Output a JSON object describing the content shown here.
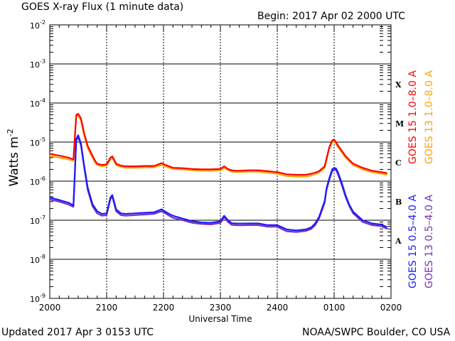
{
  "header": {
    "title": "GOES X-ray Flux (1 minute data)",
    "begin": "Begin: 2017 Apr 02 2000 UTC"
  },
  "footer": {
    "updated": "Updated 2017 Apr  3 0153 UTC",
    "credit": "NOAA/SWPC Boulder, CO USA"
  },
  "chart_data": {
    "type": "line",
    "title": "GOES X-ray Flux (1 minute data)",
    "xlabel": "Universal Time",
    "ylabel": "Watts m",
    "ylabel_sup": "-2",
    "yscale": "log",
    "ylim": [
      1e-09,
      0.01
    ],
    "xlim": [
      0,
      360
    ],
    "x_unit": "minutes since 2017-04-02 2000 UTC",
    "x_ticks": [
      {
        "label": "2000",
        "x": 0
      },
      {
        "label": "2100",
        "x": 60
      },
      {
        "label": "2200",
        "x": 120
      },
      {
        "label": "2300",
        "x": 180
      },
      {
        "label": "2400",
        "x": 240
      },
      {
        "label": "0100",
        "x": 300
      },
      {
        "label": "0200",
        "x": 360
      }
    ],
    "y_ticks": [
      {
        "exp": -2,
        "value": 0.01
      },
      {
        "exp": -3,
        "value": 0.001
      },
      {
        "exp": -4,
        "value": 0.0001
      },
      {
        "exp": -5,
        "value": 1e-05
      },
      {
        "exp": -6,
        "value": 1e-06
      },
      {
        "exp": -7,
        "value": 1e-07
      },
      {
        "exp": -8,
        "value": 1e-08
      },
      {
        "exp": -9,
        "value": 1e-09
      }
    ],
    "flare_classes": [
      {
        "label": "X",
        "value": 0.0003
      },
      {
        "label": "M",
        "value": 3e-05
      },
      {
        "label": "C",
        "value": 3e-06
      },
      {
        "label": "B",
        "value": 3e-07
      },
      {
        "label": "A",
        "value": 3e-08
      }
    ],
    "gridlines": [
      0.001,
      0.0001,
      1e-05,
      1e-06,
      1e-07,
      1e-08
    ],
    "series": [
      {
        "name": "GOES 13 1.0-8.0 A",
        "color": "#ffa500",
        "x": [
          0,
          10,
          20,
          25,
          28,
          30,
          33,
          36,
          40,
          45,
          48,
          50,
          55,
          60,
          64,
          66,
          68,
          70,
          75,
          80,
          90,
          100,
          110,
          118,
          122,
          126,
          130,
          140,
          150,
          160,
          170,
          180,
          184,
          188,
          192,
          196,
          200,
          210,
          220,
          230,
          240,
          250,
          260,
          270,
          276,
          280,
          284,
          290,
          292,
          295,
          298,
          300,
          302,
          304,
          308,
          312,
          316,
          320,
          330,
          340,
          350,
          356
        ],
        "y": [
          4.4e-06,
          4e-06,
          3.6e-06,
          3.3e-06,
          4.5e-05,
          4.8e-05,
          3.5e-05,
          1.6e-05,
          7e-06,
          4e-06,
          3e-06,
          2.6e-06,
          2.4e-06,
          2.5e-06,
          3.6e-06,
          3.9e-06,
          3.2e-06,
          2.6e-06,
          2.3e-06,
          2.2e-06,
          2.2e-06,
          2.25e-06,
          2.25e-06,
          2.6e-06,
          2.4e-06,
          2.2e-06,
          2.05e-06,
          2e-06,
          1.9e-06,
          1.85e-06,
          1.85e-06,
          1.9e-06,
          2.2e-06,
          1.9e-06,
          1.75e-06,
          1.7e-06,
          1.7e-06,
          1.75e-06,
          1.75e-06,
          1.65e-06,
          1.55e-06,
          1.35e-06,
          1.3e-06,
          1.3e-06,
          1.4e-06,
          1.5e-06,
          1.65e-06,
          2.2e-06,
          3.5e-06,
          7e-06,
          1e-05,
          1.05e-05,
          9e-06,
          7.5e-06,
          5.5e-06,
          4e-06,
          3.2e-06,
          2.6e-06,
          2e-06,
          1.7e-06,
          1.55e-06,
          1.45e-06
        ]
      },
      {
        "name": "GOES 15 1.0-8.0 A",
        "color": "#ff0000",
        "x": [
          0,
          10,
          20,
          25,
          28,
          30,
          33,
          36,
          40,
          45,
          48,
          50,
          55,
          60,
          64,
          66,
          68,
          70,
          75,
          80,
          90,
          100,
          110,
          118,
          122,
          126,
          130,
          140,
          150,
          160,
          170,
          180,
          184,
          188,
          192,
          196,
          200,
          210,
          220,
          230,
          240,
          250,
          260,
          270,
          276,
          280,
          284,
          290,
          292,
          295,
          298,
          300,
          302,
          304,
          308,
          312,
          316,
          320,
          330,
          340,
          350,
          356
        ],
        "y": [
          5e-06,
          4.5e-06,
          4e-06,
          3.6e-06,
          5e-05,
          5.3e-05,
          4e-05,
          1.8e-05,
          8e-06,
          4.5e-06,
          3.3e-06,
          2.8e-06,
          2.6e-06,
          2.7e-06,
          4e-06,
          4.3e-06,
          3.5e-06,
          2.8e-06,
          2.5e-06,
          2.4e-06,
          2.4e-06,
          2.45e-06,
          2.45e-06,
          2.9e-06,
          2.6e-06,
          2.4e-06,
          2.2e-06,
          2.15e-06,
          2.05e-06,
          2e-06,
          2e-06,
          2.05e-06,
          2.4e-06,
          2.05e-06,
          1.9e-06,
          1.85e-06,
          1.85e-06,
          1.9e-06,
          1.9e-06,
          1.8e-06,
          1.7e-06,
          1.5e-06,
          1.45e-06,
          1.45e-06,
          1.55e-06,
          1.65e-06,
          1.8e-06,
          2.4e-06,
          3.8e-06,
          7.5e-06,
          1.1e-05,
          1.15e-05,
          1e-05,
          8.2e-06,
          6e-06,
          4.4e-06,
          3.5e-06,
          2.8e-06,
          2.2e-06,
          1.85e-06,
          1.7e-06,
          1.6e-06
        ]
      },
      {
        "name": "GOES 13 0.5-4.0 A",
        "color": "#7b2fbe",
        "x": [
          0,
          10,
          20,
          25,
          28,
          30,
          33,
          36,
          40,
          45,
          50,
          55,
          60,
          64,
          66,
          68,
          70,
          75,
          80,
          90,
          100,
          110,
          118,
          122,
          126,
          130,
          140,
          150,
          160,
          170,
          180,
          184,
          188,
          192,
          196,
          200,
          210,
          220,
          230,
          240,
          250,
          260,
          270,
          276,
          280,
          284,
          290,
          292,
          295,
          298,
          300,
          302,
          304,
          308,
          312,
          316,
          320,
          330,
          340,
          350,
          356
        ],
        "y": [
          3.4e-07,
          3e-07,
          2.5e-07,
          2.2e-07,
          1.1e-05,
          1.35e-05,
          8e-06,
          2.5e-06,
          6e-07,
          2.3e-07,
          1.5e-07,
          1.3e-07,
          1.35e-07,
          3.5e-07,
          4e-07,
          2.6e-07,
          1.7e-07,
          1.35e-07,
          1.3e-07,
          1.35e-07,
          1.4e-07,
          1.45e-07,
          1.7e-07,
          1.5e-07,
          1.3e-07,
          1.15e-07,
          1e-07,
          8.6e-08,
          8e-08,
          7.8e-08,
          8.5e-08,
          1.2e-07,
          9e-08,
          7.6e-08,
          7.5e-08,
          7.4e-08,
          7.5e-08,
          7.5e-08,
          6.8e-08,
          6.8e-08,
          5.2e-08,
          5e-08,
          5.3e-08,
          6e-08,
          7.5e-08,
          1.1e-07,
          2.8e-07,
          6e-07,
          1.1e-06,
          1.8e-06,
          2e-06,
          1.9e-06,
          1.5e-06,
          8e-07,
          4e-07,
          2.3e-07,
          1.5e-07,
          9e-08,
          7.5e-08,
          7e-08,
          6e-08
        ]
      },
      {
        "name": "GOES 15 0.5-4.0 A",
        "color": "#1a1aff",
        "x": [
          0,
          10,
          20,
          25,
          28,
          30,
          33,
          36,
          40,
          45,
          50,
          55,
          60,
          64,
          66,
          68,
          70,
          75,
          80,
          90,
          100,
          110,
          118,
          122,
          126,
          130,
          140,
          150,
          160,
          170,
          180,
          184,
          188,
          192,
          196,
          200,
          210,
          220,
          230,
          240,
          250,
          260,
          270,
          276,
          280,
          284,
          290,
          292,
          295,
          298,
          300,
          302,
          304,
          308,
          312,
          316,
          320,
          330,
          340,
          350,
          356
        ],
        "y": [
          3.8e-07,
          3.3e-07,
          2.8e-07,
          2.4e-07,
          1.2e-05,
          1.5e-05,
          9e-06,
          2.8e-06,
          7e-07,
          2.6e-07,
          1.7e-07,
          1.45e-07,
          1.5e-07,
          3.8e-07,
          4.4e-07,
          2.9e-07,
          1.9e-07,
          1.5e-07,
          1.45e-07,
          1.5e-07,
          1.55e-07,
          1.6e-07,
          1.9e-07,
          1.65e-07,
          1.45e-07,
          1.3e-07,
          1.1e-07,
          9.5e-08,
          8.8e-08,
          8.6e-08,
          9.4e-08,
          1.3e-07,
          1e-07,
          8.4e-08,
          8.3e-08,
          8.2e-08,
          8.3e-08,
          8.3e-08,
          7.5e-08,
          7.5e-08,
          5.8e-08,
          5.5e-08,
          5.8e-08,
          6.6e-08,
          8.3e-08,
          1.2e-07,
          3.1e-07,
          6.6e-07,
          1.2e-06,
          2e-06,
          2.2e-06,
          2.1e-06,
          1.7e-06,
          9e-07,
          4.4e-07,
          2.5e-07,
          1.65e-07,
          1e-07,
          8.3e-08,
          7.7e-08,
          6.6e-08
        ]
      }
    ],
    "legend_right": [
      {
        "label": "GOES 15 1.0–8.0 A",
        "color": "#ff0000"
      },
      {
        "label": "GOES 13 1.0–8.0 A",
        "color": "#ffa500"
      },
      {
        "label": "GOES 15 0.5–4.0 A",
        "color": "#1a1aff"
      },
      {
        "label": "GOES 13 0.5–4.0 A",
        "color": "#7b2fbe"
      }
    ]
  }
}
